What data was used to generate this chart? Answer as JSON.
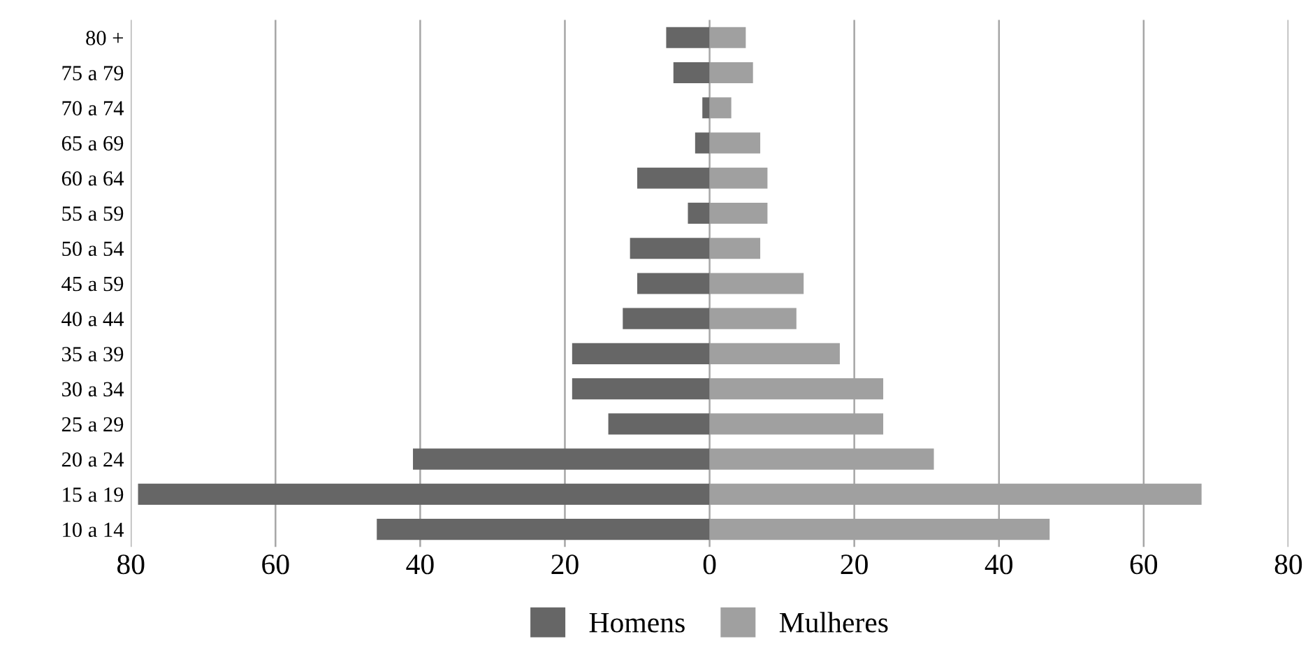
{
  "chart_data": {
    "type": "bar",
    "orientation": "horizontal",
    "stacked": true,
    "categories": [
      "80 +",
      "75 a 79",
      "70 a 74",
      "65 a 69",
      "60 a 64",
      "55 a 59",
      "50 a 54",
      "45 a 59",
      "40 a 44",
      "35 a 39",
      "30 a 34",
      "25 a 29",
      "20 a 24",
      "15 a 19",
      "10 a 14"
    ],
    "series": [
      {
        "name": "Homens",
        "color": "#666666",
        "values": [
          -6,
          -5,
          -1,
          -2,
          -10,
          -3,
          -11,
          -10,
          -12,
          -19,
          -19,
          -14,
          -41,
          -79,
          -46
        ]
      },
      {
        "name": "Mulheres",
        "color": "#a0a0a0",
        "values": [
          5,
          6,
          3,
          7,
          8,
          8,
          7,
          13,
          12,
          18,
          24,
          24,
          31,
          68,
          47
        ]
      }
    ],
    "xlim": [
      -80,
      80
    ],
    "xticks": [
      {
        "value": -80,
        "label": "80"
      },
      {
        "value": -60,
        "label": "60"
      },
      {
        "value": -40,
        "label": "40"
      },
      {
        "value": -20,
        "label": "20"
      },
      0,
      20,
      40,
      60,
      80
    ],
    "grid": "x",
    "legend": "bottom"
  }
}
